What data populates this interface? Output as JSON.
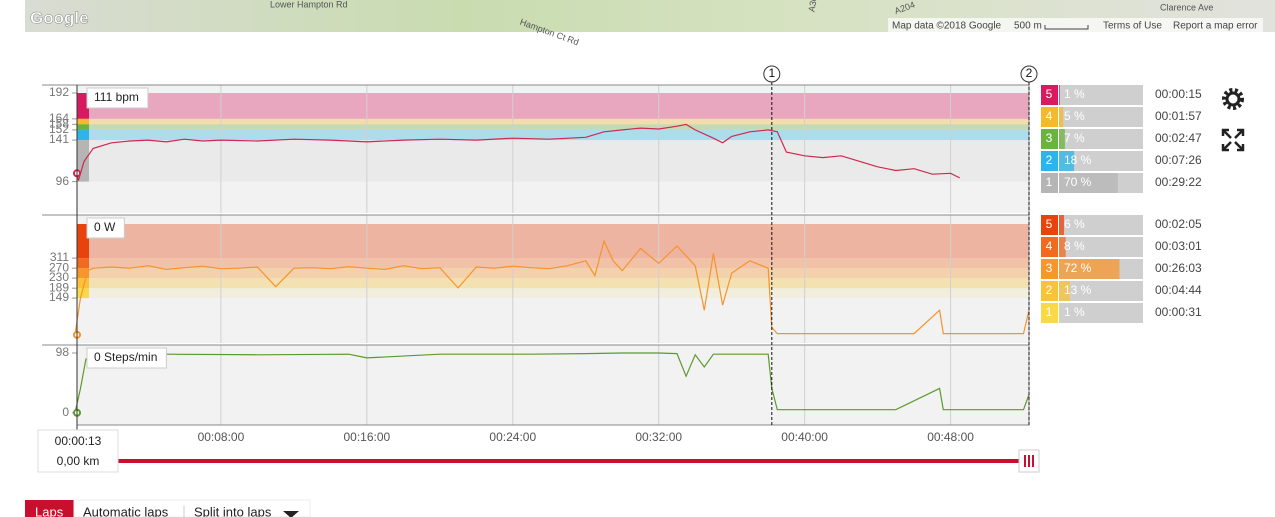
{
  "map": {
    "logo": "Google",
    "streets": [
      "Lower Hampton Rd",
      "Hampton Ct Rd",
      "A307",
      "A204",
      "Clarence Ave"
    ],
    "attribution": "Map data ©2018 Google",
    "scale": "500 m",
    "terms": "Terms of Use",
    "report": "Report a map error"
  },
  "time_axis": {
    "xlim": [
      0,
      52.3
    ],
    "xticks": [
      {
        "value": 8,
        "label": "00:08:00"
      },
      {
        "value": 16,
        "label": "00:16:00"
      },
      {
        "value": 24,
        "label": "00:24:00"
      },
      {
        "value": 32,
        "label": "00:32:00"
      },
      {
        "value": 40,
        "label": "00:40:00"
      },
      {
        "value": 48,
        "label": "00:48:00"
      }
    ]
  },
  "lap_markers": [
    {
      "label": "1",
      "x": 38.2
    },
    {
      "label": "2",
      "x": 52.3
    }
  ],
  "panels": [
    {
      "readout": "111 bpm",
      "color": "#d0284f",
      "ylim": [
        62,
        192
      ],
      "yticks": [
        96,
        141,
        152,
        158,
        164,
        192
      ],
      "x": [
        0,
        0.2,
        0.5,
        1,
        2,
        3,
        4,
        5,
        6,
        7,
        8,
        10,
        12,
        14,
        16,
        18,
        20,
        22,
        24,
        26,
        28,
        29,
        30,
        31,
        32,
        33,
        33.5,
        34,
        35,
        35.5,
        36,
        37,
        38,
        38.5,
        39,
        40,
        41,
        42,
        43,
        44,
        45,
        46,
        47,
        48,
        48.5
      ],
      "values": [
        105,
        98,
        118,
        132,
        138,
        140,
        141,
        139,
        142,
        140,
        141,
        140,
        142,
        141,
        139,
        141,
        142,
        141,
        143,
        142,
        144,
        150,
        152,
        154,
        153,
        156,
        158,
        152,
        143,
        138,
        145,
        150,
        152,
        150,
        128,
        124,
        122,
        124,
        118,
        112,
        108,
        110,
        104,
        105,
        100
      ],
      "zones": [
        {
          "zone": "5",
          "pct": 1,
          "pct_label": "1 %",
          "time": "00:00:15",
          "color": "#d81b60"
        },
        {
          "zone": "4",
          "pct": 5,
          "pct_label": "5 %",
          "time": "00:01:57",
          "color": "#f5b82e"
        },
        {
          "zone": "3",
          "pct": 7,
          "pct_label": "7 %",
          "time": "00:02:47",
          "color": "#6ab33e"
        },
        {
          "zone": "2",
          "pct": 18,
          "pct_label": "18 %",
          "time": "00:07:26",
          "color": "#2bb5e8"
        },
        {
          "zone": "1",
          "pct": 70,
          "pct_label": "70 %",
          "time": "00:29:22",
          "color": "#b5b5b5"
        }
      ]
    },
    {
      "readout": "0 W",
      "color": "#f7932b",
      "ylim": [
        -33,
        449
      ],
      "yticks": [
        149,
        189,
        230,
        270,
        311
      ],
      "x": [
        0,
        0.3,
        0.7,
        1,
        2,
        3,
        4,
        5,
        6,
        7,
        8,
        9,
        10,
        11,
        12,
        13,
        14,
        15,
        16,
        17,
        18,
        19,
        20,
        21,
        22,
        23,
        24,
        25,
        26,
        27,
        28,
        28.5,
        29,
        29.5,
        30,
        31,
        32,
        33,
        34,
        34.5,
        35,
        35.5,
        36,
        37,
        38,
        38.2,
        38.5,
        40,
        41,
        42,
        44,
        46,
        47.4,
        47.6,
        48,
        50,
        52,
        52.3
      ],
      "values": [
        0,
        150,
        260,
        270,
        275,
        270,
        280,
        265,
        272,
        278,
        268,
        270,
        275,
        195,
        270,
        272,
        268,
        276,
        270,
        265,
        280,
        268,
        272,
        190,
        275,
        270,
        278,
        272,
        268,
        280,
        300,
        240,
        380,
        300,
        260,
        350,
        290,
        360,
        280,
        100,
        330,
        120,
        250,
        300,
        270,
        30,
        5,
        5,
        5,
        5,
        5,
        5,
        100,
        5,
        5,
        5,
        5,
        100
      ],
      "zones": [
        {
          "zone": "5",
          "pct": 6,
          "pct_label": "6 %",
          "time": "00:02:05",
          "color": "#e8420d"
        },
        {
          "zone": "4",
          "pct": 8,
          "pct_label": "8 %",
          "time": "00:03:01",
          "color": "#f26a1f"
        },
        {
          "zone": "3",
          "pct": 72,
          "pct_label": "72 %",
          "time": "00:26:03",
          "color": "#f7962b"
        },
        {
          "zone": "2",
          "pct": 13,
          "pct_label": "13 %",
          "time": "00:04:44",
          "color": "#f9c23a"
        },
        {
          "zone": "1",
          "pct": 1,
          "pct_label": "1 %",
          "time": "00:00:31",
          "color": "#f9d84a"
        }
      ]
    },
    {
      "readout": "0 Steps/min",
      "color": "#5c9a2c",
      "ylim": [
        -20,
        98
      ],
      "yticks": [
        0,
        98
      ],
      "x": [
        0,
        0.3,
        0.6,
        1,
        5,
        10,
        15,
        16,
        20,
        25,
        28,
        30,
        32,
        33,
        33.5,
        34,
        34.5,
        35,
        36,
        37,
        38,
        38.2,
        38.5,
        40,
        42,
        45,
        47.4,
        47.6,
        48,
        50,
        52,
        52.3
      ],
      "values": [
        0,
        40,
        88,
        96,
        96,
        95,
        96,
        90,
        96,
        96,
        97,
        98,
        98,
        97,
        60,
        95,
        75,
        96,
        96,
        96,
        96,
        40,
        5,
        5,
        5,
        5,
        40,
        5,
        5,
        5,
        5,
        30
      ]
    }
  ],
  "slider": {
    "time": "00:00:13",
    "distance": "0,00 km"
  },
  "tabs": [
    "Laps",
    "Automatic laps",
    "Split into laps"
  ]
}
